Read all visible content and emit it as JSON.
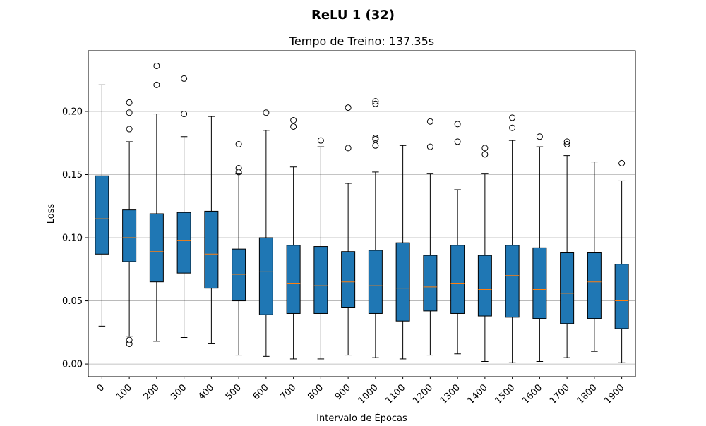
{
  "figure": {
    "suptitle": "ReLU 1 (32)"
  },
  "chart_data": {
    "type": "box",
    "title": "Tempo de Treino: 137.35s",
    "xlabel": "Intervalo de Épocas",
    "ylabel": "Loss",
    "ylim": [
      -0.01,
      0.248
    ],
    "y_ticks": [
      "0.00",
      "0.05",
      "0.10",
      "0.15",
      "0.20"
    ],
    "grid": "y",
    "box_color": "#1f77b4",
    "median_color": "#ff7f0e",
    "categories": [
      "0",
      "100",
      "200",
      "300",
      "400",
      "500",
      "600",
      "700",
      "800",
      "900",
      "1000",
      "1100",
      "1200",
      "1300",
      "1400",
      "1500",
      "1600",
      "1700",
      "1800",
      "1900"
    ],
    "boxes": [
      {
        "whislo": 0.03,
        "q1": 0.087,
        "med": 0.115,
        "q3": 0.149,
        "whishi": 0.221,
        "fliers": []
      },
      {
        "whislo": 0.022,
        "q1": 0.081,
        "med": 0.1,
        "q3": 0.122,
        "whishi": 0.176,
        "fliers": [
          0.016,
          0.019,
          0.186,
          0.199,
          0.207
        ]
      },
      {
        "whislo": 0.018,
        "q1": 0.065,
        "med": 0.089,
        "q3": 0.119,
        "whishi": 0.198,
        "fliers": [
          0.221,
          0.236
        ]
      },
      {
        "whislo": 0.021,
        "q1": 0.072,
        "med": 0.098,
        "q3": 0.12,
        "whishi": 0.18,
        "fliers": [
          0.198,
          0.226
        ]
      },
      {
        "whislo": 0.016,
        "q1": 0.06,
        "med": 0.087,
        "q3": 0.121,
        "whishi": 0.196,
        "fliers": []
      },
      {
        "whislo": 0.007,
        "q1": 0.05,
        "med": 0.071,
        "q3": 0.091,
        "whishi": 0.151,
        "fliers": [
          0.152,
          0.155,
          0.174
        ]
      },
      {
        "whislo": 0.006,
        "q1": 0.039,
        "med": 0.073,
        "q3": 0.1,
        "whishi": 0.185,
        "fliers": [
          0.199
        ]
      },
      {
        "whislo": 0.004,
        "q1": 0.04,
        "med": 0.064,
        "q3": 0.094,
        "whishi": 0.156,
        "fliers": [
          0.188,
          0.193
        ]
      },
      {
        "whislo": 0.004,
        "q1": 0.04,
        "med": 0.062,
        "q3": 0.093,
        "whishi": 0.172,
        "fliers": [
          0.177
        ]
      },
      {
        "whislo": 0.007,
        "q1": 0.045,
        "med": 0.065,
        "q3": 0.089,
        "whishi": 0.143,
        "fliers": [
          0.171,
          0.203
        ]
      },
      {
        "whislo": 0.005,
        "q1": 0.04,
        "med": 0.062,
        "q3": 0.09,
        "whishi": 0.152,
        "fliers": [
          0.173,
          0.178,
          0.179,
          0.206,
          0.208
        ]
      },
      {
        "whislo": 0.004,
        "q1": 0.034,
        "med": 0.06,
        "q3": 0.096,
        "whishi": 0.173,
        "fliers": []
      },
      {
        "whislo": 0.007,
        "q1": 0.042,
        "med": 0.061,
        "q3": 0.086,
        "whishi": 0.151,
        "fliers": [
          0.172,
          0.192
        ]
      },
      {
        "whislo": 0.008,
        "q1": 0.04,
        "med": 0.064,
        "q3": 0.094,
        "whishi": 0.138,
        "fliers": [
          0.176,
          0.19
        ]
      },
      {
        "whislo": 0.002,
        "q1": 0.038,
        "med": 0.059,
        "q3": 0.086,
        "whishi": 0.151,
        "fliers": [
          0.166,
          0.171
        ]
      },
      {
        "whislo": 0.001,
        "q1": 0.037,
        "med": 0.07,
        "q3": 0.094,
        "whishi": 0.177,
        "fliers": [
          0.187,
          0.195
        ]
      },
      {
        "whislo": 0.002,
        "q1": 0.036,
        "med": 0.059,
        "q3": 0.092,
        "whishi": 0.172,
        "fliers": [
          0.18
        ]
      },
      {
        "whislo": 0.005,
        "q1": 0.032,
        "med": 0.056,
        "q3": 0.088,
        "whishi": 0.165,
        "fliers": [
          0.174,
          0.176
        ]
      },
      {
        "whislo": 0.01,
        "q1": 0.036,
        "med": 0.065,
        "q3": 0.088,
        "whishi": 0.16,
        "fliers": []
      },
      {
        "whislo": 0.001,
        "q1": 0.028,
        "med": 0.05,
        "q3": 0.079,
        "whishi": 0.145,
        "fliers": [
          0.159
        ]
      }
    ]
  }
}
